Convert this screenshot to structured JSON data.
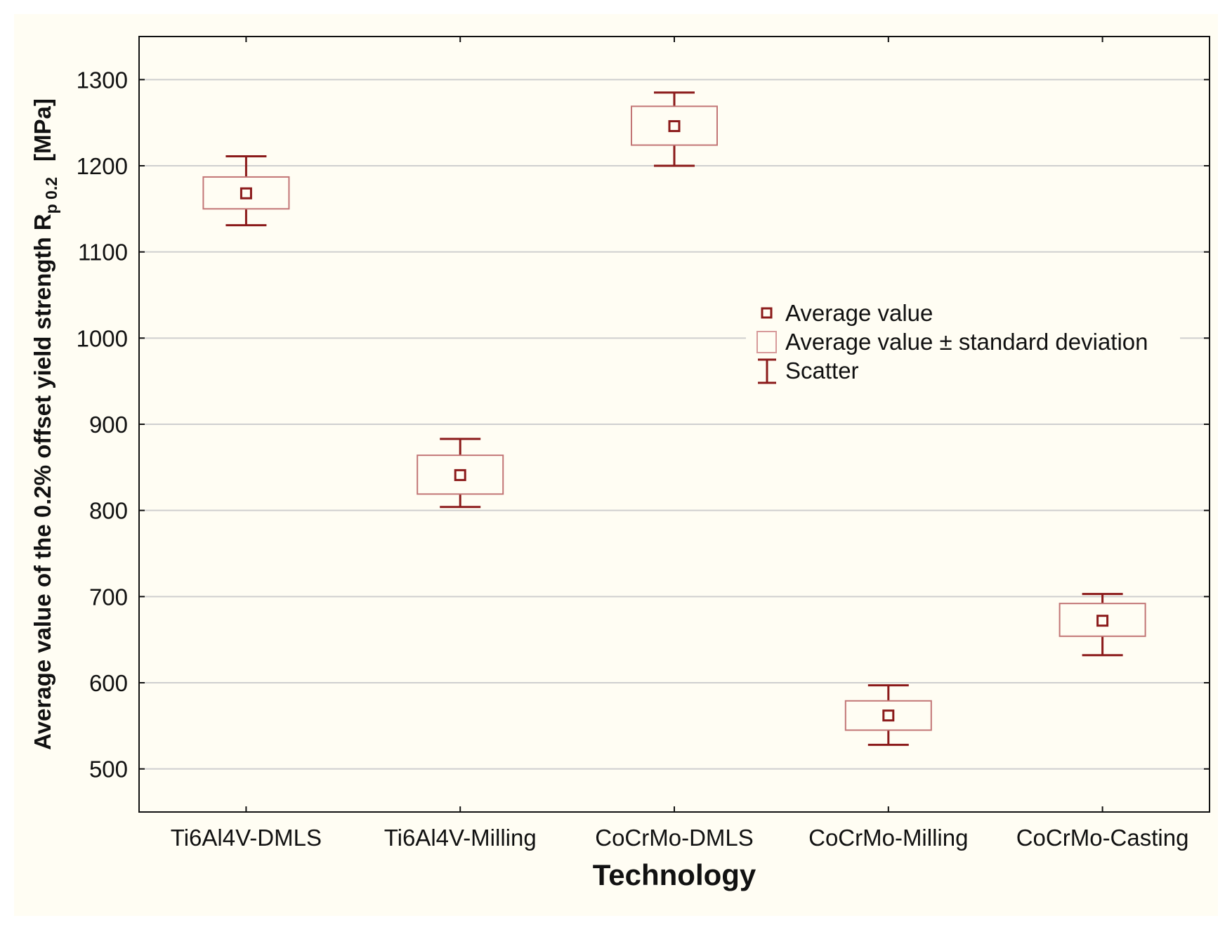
{
  "chart_data": {
    "type": "box",
    "categories": [
      "Ti6Al4V-DMLS",
      "Ti6Al4V-Milling",
      "CoCrMo-DMLS",
      "CoCrMo-Milling",
      "CoCrMo-Casting"
    ],
    "series": [
      {
        "mean": [
          1168,
          841,
          1246,
          562,
          672
        ],
        "sd_low": [
          1150,
          819,
          1224,
          545,
          654
        ],
        "sd_high": [
          1187,
          864,
          1269,
          579,
          692
        ],
        "min": [
          1131,
          804,
          1200,
          528,
          632
        ],
        "max": [
          1211,
          883,
          1285,
          597,
          703
        ]
      }
    ],
    "xlabel": "Technology",
    "ylabel": "Average value of the 0.2% offset yield strength R",
    "ylabel_sub": "p 0.2",
    "ylabel_unit": "[MPa]",
    "ylim": [
      450,
      1350
    ],
    "yticks": [
      500,
      600,
      700,
      800,
      900,
      1000,
      1100,
      1200,
      1300
    ],
    "grid": true,
    "legend": {
      "placement": "center-right",
      "entries": [
        "Average value",
        "Average value ± standard deviation",
        "Scatter"
      ]
    },
    "color": "#8b1a1a"
  }
}
